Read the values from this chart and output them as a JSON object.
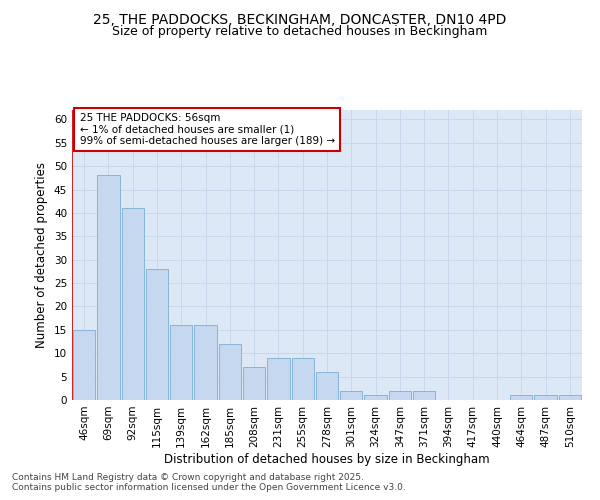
{
  "title_line1": "25, THE PADDOCKS, BECKINGHAM, DONCASTER, DN10 4PD",
  "title_line2": "Size of property relative to detached houses in Beckingham",
  "xlabel": "Distribution of detached houses by size in Beckingham",
  "ylabel": "Number of detached properties",
  "bins": [
    "46sqm",
    "69sqm",
    "92sqm",
    "115sqm",
    "139sqm",
    "162sqm",
    "185sqm",
    "208sqm",
    "231sqm",
    "255sqm",
    "278sqm",
    "301sqm",
    "324sqm",
    "347sqm",
    "371sqm",
    "394sqm",
    "417sqm",
    "440sqm",
    "464sqm",
    "487sqm",
    "510sqm"
  ],
  "values": [
    15,
    48,
    41,
    28,
    16,
    16,
    12,
    7,
    9,
    9,
    6,
    2,
    1,
    2,
    2,
    0,
    0,
    0,
    1,
    1,
    1
  ],
  "bar_color": "#c5d8f0",
  "bar_edge_color": "#7bafd4",
  "annotation_text": "25 THE PADDOCKS: 56sqm\n← 1% of detached houses are smaller (1)\n99% of semi-detached houses are larger (189) →",
  "annotation_box_color": "#ffffff",
  "annotation_box_edge": "#cc0000",
  "red_line_x": -0.5,
  "grid_color": "#c8d8ec",
  "background_color": "#dce8f5",
  "ylim": [
    0,
    62
  ],
  "yticks": [
    0,
    5,
    10,
    15,
    20,
    25,
    30,
    35,
    40,
    45,
    50,
    55,
    60
  ],
  "footnote": "Contains HM Land Registry data © Crown copyright and database right 2025.\nContains public sector information licensed under the Open Government Licence v3.0.",
  "title_fontsize": 10,
  "subtitle_fontsize": 9,
  "axis_label_fontsize": 8.5,
  "tick_fontsize": 7.5,
  "annotation_fontsize": 7.5,
  "footnote_fontsize": 6.5
}
